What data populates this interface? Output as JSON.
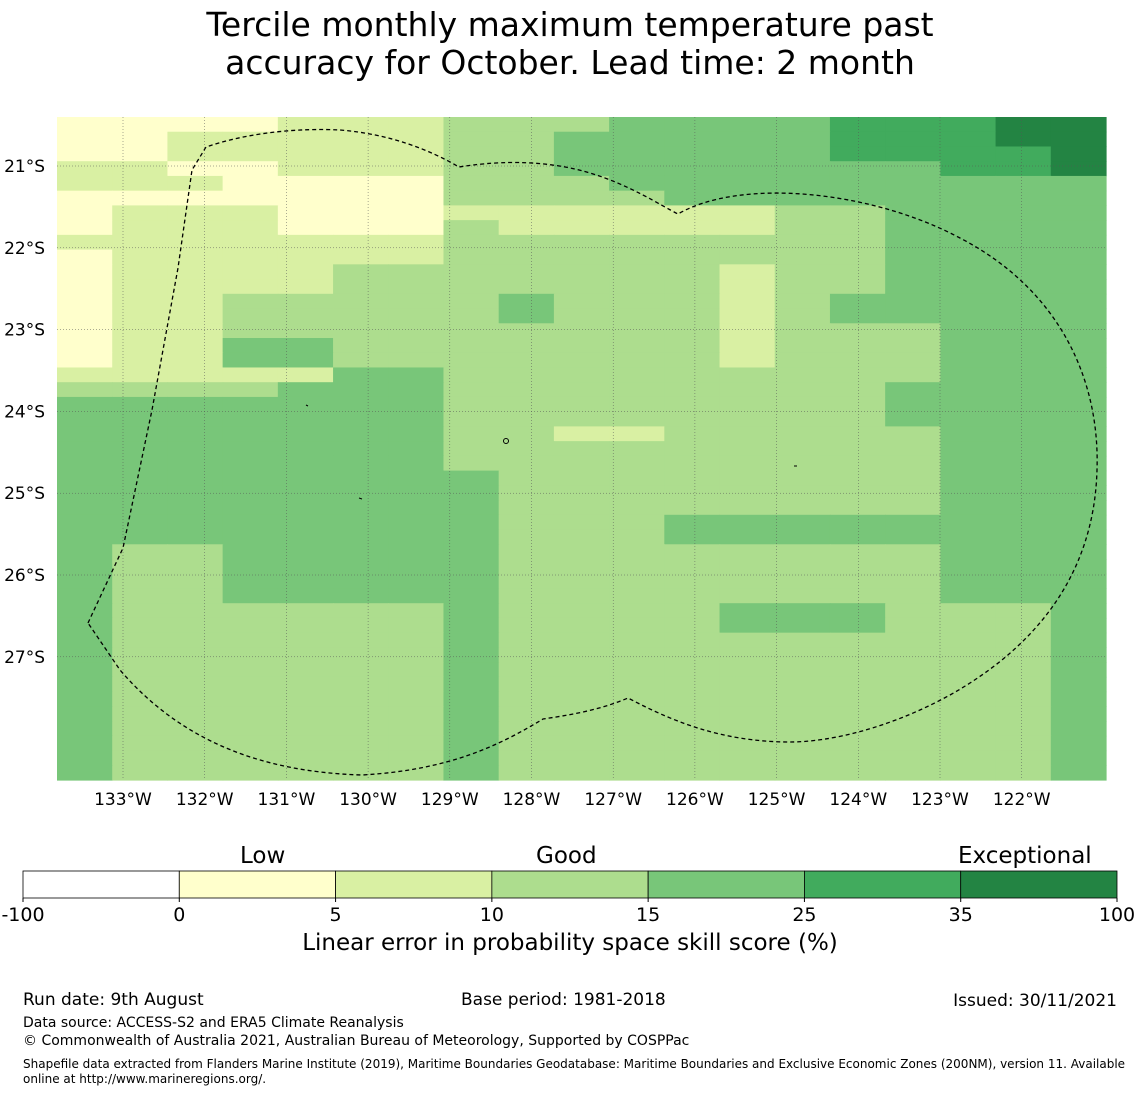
{
  "title": {
    "line1": "Tercile monthly maximum temperature past",
    "line2": "accuracy for October. Lead time: 2 month"
  },
  "map": {
    "lat_labels": [
      "21°S",
      "22°S",
      "23°S",
      "24°S",
      "25°S",
      "26°S",
      "27°S"
    ],
    "lon_labels": [
      "133°W",
      "132°W",
      "131°W",
      "130°W",
      "129°W",
      "128°W",
      "127°W",
      "126°W",
      "125°W",
      "124°W",
      "123°W",
      "122°W"
    ],
    "palette": [
      "#ffffcc",
      "#d9f0a3",
      "#addd8e",
      "#78c679",
      "#41ab5d",
      "#238443"
    ],
    "grid": [
      "0000111222333344455",
      "0011111223333344455",
      "0011111223333344445",
      "1100111223333333445",
      "1110000222333333333",
      "0000000222233333333",
      "0111000111111223333",
      "0111000211111223333",
      "1111111222222223333",
      "0111111222222223333",
      "0111122222221223333",
      "0111122222221223333",
      "0112222232221233333",
      "0112222232221233333",
      "0112222222221222333",
      "0113322222221222333",
      "0113322222221222333",
      "1111133222222222333",
      "2222333222222223333",
      "3333333222222223333",
      "3333333222222223333",
      "3333333221122222333",
      "3333333222222222333",
      "3333333222222222333",
      "3333333322222222333",
      "3333333322222222333",
      "3333333322222222333",
      "3333333322233333333",
      "3333333322233333333",
      "3223333322222222333",
      "3223333322222222333",
      "3223333322222222333",
      "3223333322222222333",
      "3222222322223332223",
      "3222222322223332223",
      "3222222322222222223",
      "3222222322222222223",
      "3222222322222222223",
      "3222222322222222223",
      "3222222322222222223",
      "3222222322222222223",
      "3222222322222222223",
      "3222222322222222223",
      "3222222322222222223",
      "3222222322222222223"
    ]
  },
  "colorbar": {
    "bins": [
      {
        "from": -100,
        "to": 0,
        "color": "#ffffff"
      },
      {
        "from": 0,
        "to": 5,
        "color": "#ffffcc"
      },
      {
        "from": 5,
        "to": 10,
        "color": "#d9f0a3"
      },
      {
        "from": 10,
        "to": 15,
        "color": "#addd8e"
      },
      {
        "from": 15,
        "to": 25,
        "color": "#78c679"
      },
      {
        "from": 25,
        "to": 35,
        "color": "#41ab5d"
      },
      {
        "from": 35,
        "to": 100,
        "color": "#238443"
      }
    ],
    "tick_labels": [
      "-100",
      "0",
      "5",
      "10",
      "15",
      "25",
      "35",
      "100"
    ],
    "category_low": "Low",
    "category_good": "Good",
    "category_exceptional": "Exceptional",
    "axis_label": "Linear error in probability space skill score (%)"
  },
  "footer": {
    "run_date": "Run date: 9th August",
    "base_period": "Base period: 1981-2018",
    "issued": "Issued: 30/11/2021",
    "data_source": "Data source: ACCESS-S2 and ERA5 Climate Reanalysis",
    "copyright": "© Commonwealth of Australia 2021, Australian Bureau of Meteorology, Supported by COSPPac",
    "shapefile_note": "Shapefile data extracted from Flanders Marine Institute (2019), Maritime Boundaries Geodatabase: Maritime Boundaries and Exclusive Economic Zones (200NM), version 11. Available online at http://www.marineregions.org/."
  }
}
